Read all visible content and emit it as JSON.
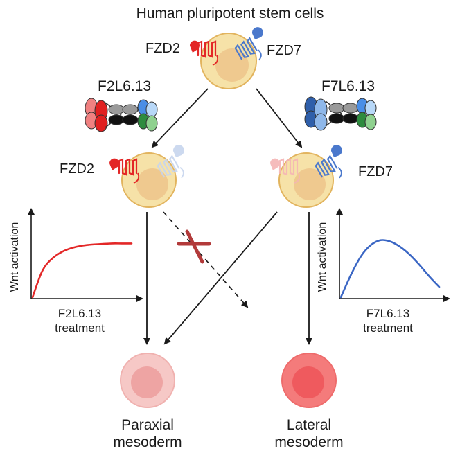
{
  "title": "Human pluripotent stem cells",
  "receptors": {
    "fzd2": "FZD2",
    "fzd7": "FZD7"
  },
  "ligands": {
    "left": "F2L6.13",
    "right": "F7L6.13"
  },
  "plots": {
    "left": {
      "ylabel": "Wnt activation",
      "xlabel_line1": "F2L6.13",
      "xlabel_line2": "treatment"
    },
    "right": {
      "ylabel": "Wnt activation",
      "xlabel_line1": "F7L6.13",
      "xlabel_line2": "treatment"
    }
  },
  "fates": {
    "left": {
      "line1": "Paraxial",
      "line2": "mesoderm"
    },
    "right": {
      "line1": "Lateral",
      "line2": "mesoderm"
    }
  },
  "colors": {
    "fzd2": "#e32727",
    "fzd7": "#4a78cc",
    "cell_outer": "#f6e2a8",
    "cell_inner": "#efc98f",
    "paraxial_outer": "#f6c8c6",
    "paraxial_inner": "#eea4a3",
    "lateral_outer": "#f47b7b",
    "lateral_inner": "#ef5a5e",
    "blocked": "#b23a3a"
  },
  "chart_data": [
    {
      "type": "line",
      "title": "",
      "xlabel": "F2L6.13 treatment",
      "ylabel": "Wnt activation",
      "trend": "saturating increase",
      "series": [
        {
          "x": [
            0,
            0.1,
            0.2,
            0.3,
            0.4,
            0.5,
            0.6,
            0.7,
            0.8,
            0.9,
            1.0
          ],
          "values": [
            0,
            0.48,
            0.7,
            0.82,
            0.89,
            0.93,
            0.95,
            0.96,
            0.97,
            0.97,
            0.97
          ]
        }
      ]
    },
    {
      "type": "line",
      "title": "",
      "xlabel": "F7L6.13 treatment",
      "ylabel": "Wnt activation",
      "trend": "biphasic (rise then fall)",
      "series": [
        {
          "x": [
            0,
            0.1,
            0.2,
            0.3,
            0.4,
            0.5,
            0.6,
            0.7,
            0.8,
            0.9,
            1.0
          ],
          "values": [
            0,
            0.38,
            0.7,
            0.9,
            0.99,
            0.97,
            0.88,
            0.74,
            0.56,
            0.36,
            0.18
          ]
        }
      ]
    }
  ]
}
